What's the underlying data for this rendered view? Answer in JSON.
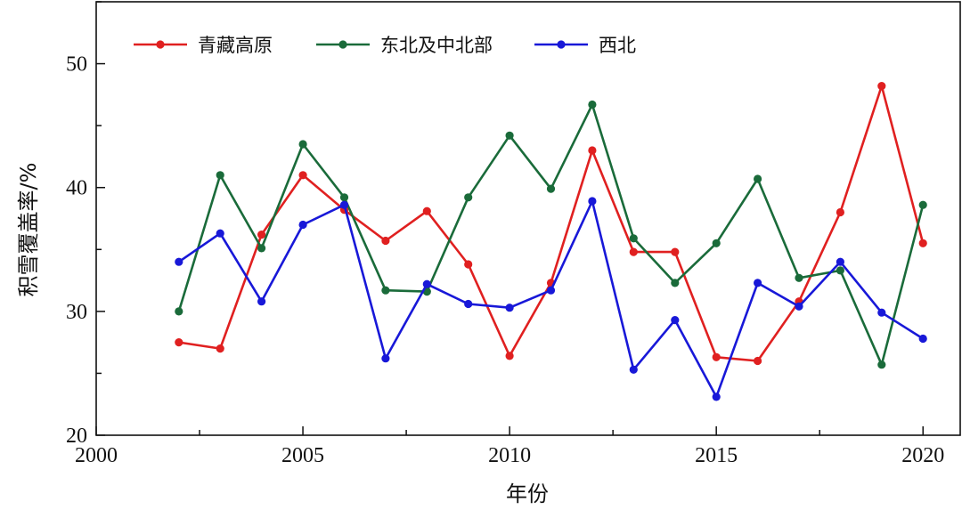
{
  "chart_data": {
    "type": "line",
    "xlabel": "年份",
    "ylabel": "积雪覆盖率/%",
    "xlim": [
      2000,
      2020.9
    ],
    "ylim": [
      20,
      55
    ],
    "xticks": [
      2000,
      2005,
      2010,
      2015,
      2020
    ],
    "yticks": [
      20,
      30,
      40,
      50
    ],
    "grid": false,
    "legend_position": "top-left",
    "x": [
      2002,
      2003,
      2004,
      2005,
      2006,
      2007,
      2008,
      2009,
      2010,
      2011,
      2012,
      2013,
      2014,
      2015,
      2016,
      2017,
      2018,
      2019,
      2020
    ],
    "series": [
      {
        "name": "青藏高原",
        "color": "#e02020",
        "values": [
          27.5,
          27.0,
          36.2,
          41.0,
          38.2,
          35.7,
          38.1,
          33.8,
          26.4,
          32.3,
          43.0,
          34.8,
          34.8,
          26.3,
          26.0,
          30.8,
          38.0,
          48.2,
          35.5
        ]
      },
      {
        "name": "东北及中北部",
        "color": "#1a6b3a",
        "values": [
          30.0,
          41.0,
          35.1,
          43.5,
          39.2,
          31.7,
          31.6,
          39.2,
          44.2,
          39.9,
          46.7,
          35.9,
          32.3,
          35.5,
          40.7,
          32.7,
          33.3,
          25.7,
          38.6
        ]
      },
      {
        "name": "西北",
        "color": "#1818d8",
        "values": [
          34.0,
          36.3,
          30.8,
          37.0,
          38.6,
          26.2,
          32.2,
          30.6,
          30.3,
          31.7,
          38.9,
          25.3,
          29.3,
          23.1,
          32.3,
          30.4,
          34.0,
          29.9,
          27.8
        ]
      }
    ]
  }
}
